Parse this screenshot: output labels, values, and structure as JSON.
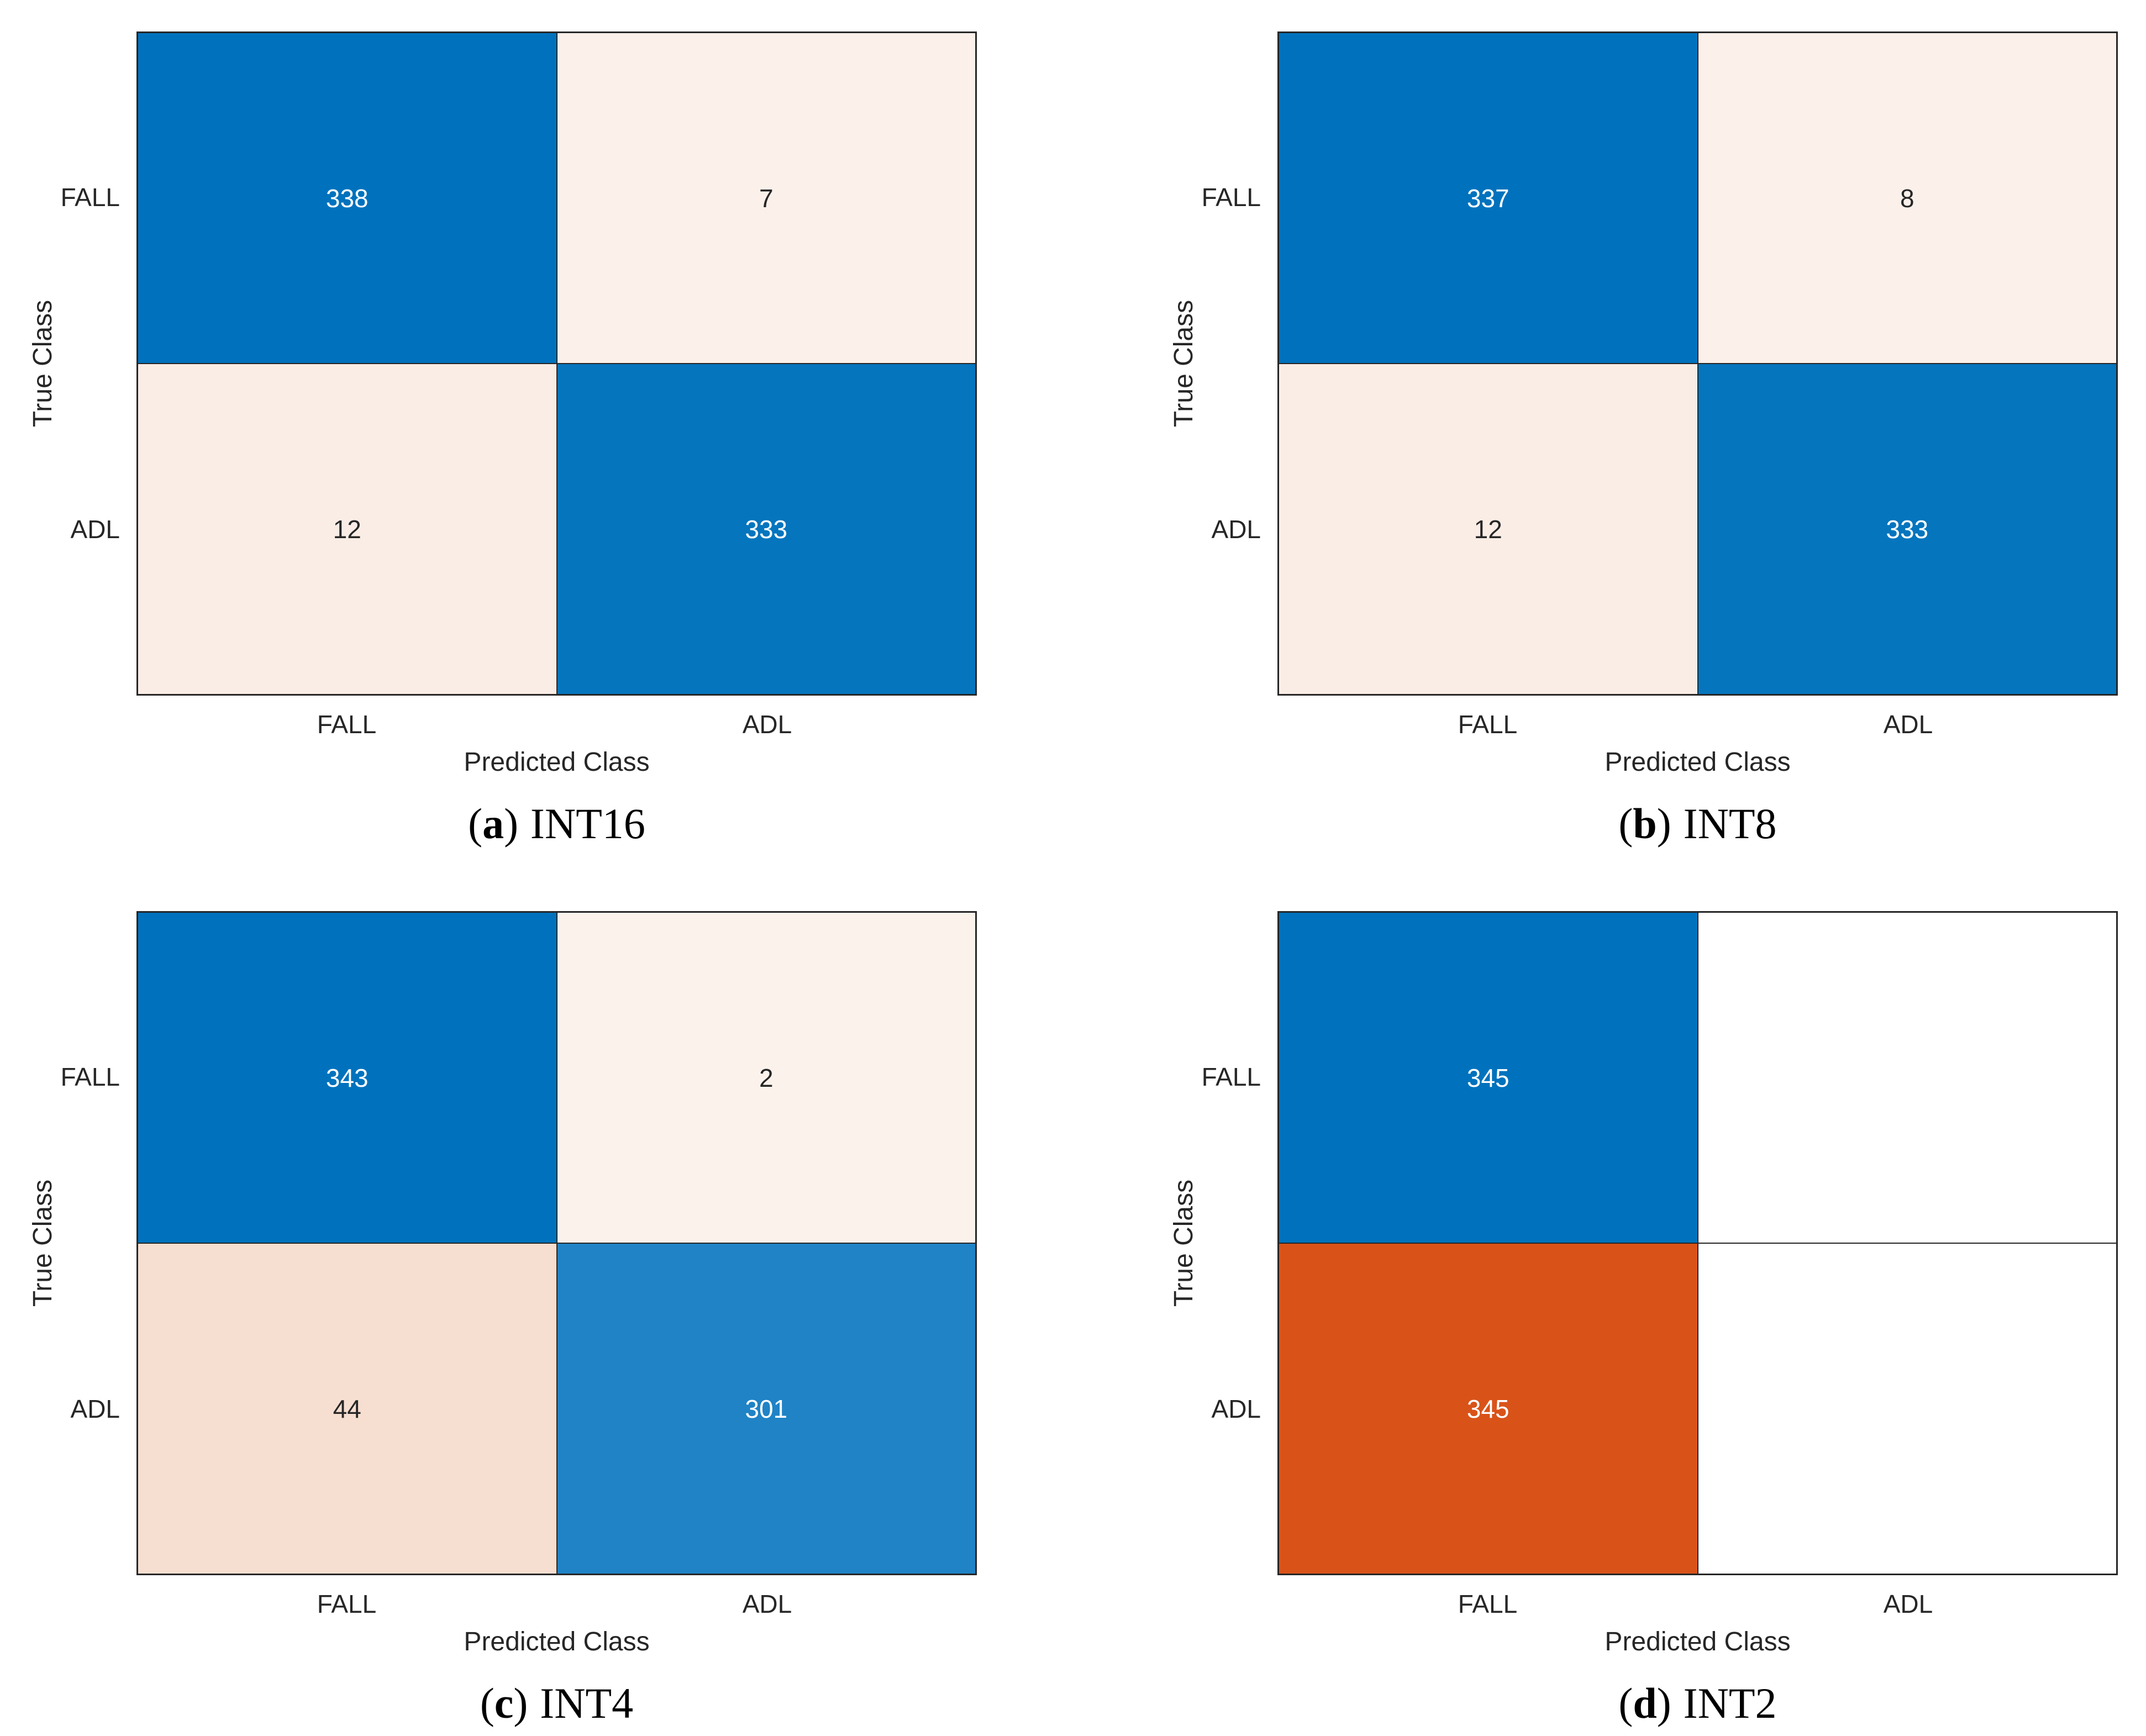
{
  "figure": {
    "ylabel": "True Class",
    "xlabel": "Predicted Class",
    "classes": [
      "FALL",
      "ADL"
    ]
  },
  "colors": {
    "diagonal_blue": "#0072BD",
    "off_diagonal_orange": "#D95319",
    "grid_line": "#262626",
    "text_dark": "#262626",
    "text_light": "#FFFFFF",
    "background": "#FFFFFF"
  },
  "panels": [
    {
      "id": "a",
      "caption": {
        "open": "(",
        "letter": "a",
        "close": ")",
        "label": "INT16"
      },
      "ylabel": "True Class",
      "xlabel": "Predicted Class",
      "row_ticks": [
        "FALL",
        "ADL"
      ],
      "col_ticks": [
        "FALL",
        "ADL"
      ],
      "cells": [
        {
          "value": "338",
          "bg": "#0072BD",
          "fg": "#FFFFFF"
        },
        {
          "value": "7",
          "bg": "#FBF0EA",
          "fg": "#262626"
        },
        {
          "value": "12",
          "bg": "#FAEDE6",
          "fg": "#262626"
        },
        {
          "value": "333",
          "bg": "#0575BE",
          "fg": "#FFFFFF"
        }
      ]
    },
    {
      "id": "b",
      "caption": {
        "open": "(",
        "letter": "b",
        "close": ")",
        "label": "INT8"
      },
      "ylabel": "True Class",
      "xlabel": "Predicted Class",
      "row_ticks": [
        "FALL",
        "ADL"
      ],
      "col_ticks": [
        "FALL",
        "ADL"
      ],
      "cells": [
        {
          "value": "337",
          "bg": "#0072BD",
          "fg": "#FFFFFF"
        },
        {
          "value": "8",
          "bg": "#FBF0EA",
          "fg": "#262626"
        },
        {
          "value": "12",
          "bg": "#FAEDE6",
          "fg": "#262626"
        },
        {
          "value": "333",
          "bg": "#0575BE",
          "fg": "#FFFFFF"
        }
      ]
    },
    {
      "id": "c",
      "caption": {
        "open": "(",
        "letter": "c",
        "close": ")",
        "label": "INT4"
      },
      "ylabel": "True Class",
      "xlabel": "Predicted Class",
      "row_ticks": [
        "FALL",
        "ADL"
      ],
      "col_ticks": [
        "FALL",
        "ADL"
      ],
      "cells": [
        {
          "value": "343",
          "bg": "#0072BD",
          "fg": "#FFFFFF"
        },
        {
          "value": "2",
          "bg": "#FCF2EC",
          "fg": "#262626"
        },
        {
          "value": "44",
          "bg": "#F6DED0",
          "fg": "#262626"
        },
        {
          "value": "301",
          "bg": "#1F83C6",
          "fg": "#FFFFFF"
        }
      ]
    },
    {
      "id": "d",
      "caption": {
        "open": "(",
        "letter": "d",
        "close": ")",
        "label": "INT2"
      },
      "ylabel": "True Class",
      "xlabel": "Predicted Class",
      "row_ticks": [
        "FALL",
        "ADL"
      ],
      "col_ticks": [
        "FALL",
        "ADL"
      ],
      "cells": [
        {
          "value": "345",
          "bg": "#0072BD",
          "fg": "#FFFFFF"
        },
        {
          "value": "",
          "bg": "#FFFFFF",
          "fg": "#262626"
        },
        {
          "value": "345",
          "bg": "#D95319",
          "fg": "#FFFFFF"
        },
        {
          "value": "",
          "bg": "#FFFFFF",
          "fg": "#262626"
        }
      ]
    }
  ],
  "chart_data": [
    {
      "type": "heatmap",
      "title": "(a) INT16",
      "xlabel": "Predicted Class",
      "ylabel": "True Class",
      "x_categories": [
        "FALL",
        "ADL"
      ],
      "y_categories": [
        "FALL",
        "ADL"
      ],
      "values": [
        [
          338,
          7
        ],
        [
          12,
          333
        ]
      ],
      "diagonal_color": "#0072BD",
      "off_diagonal_color": "#D95319"
    },
    {
      "type": "heatmap",
      "title": "(b) INT8",
      "xlabel": "Predicted Class",
      "ylabel": "True Class",
      "x_categories": [
        "FALL",
        "ADL"
      ],
      "y_categories": [
        "FALL",
        "ADL"
      ],
      "values": [
        [
          337,
          8
        ],
        [
          12,
          333
        ]
      ],
      "diagonal_color": "#0072BD",
      "off_diagonal_color": "#D95319"
    },
    {
      "type": "heatmap",
      "title": "(c) INT4",
      "xlabel": "Predicted Class",
      "ylabel": "True Class",
      "x_categories": [
        "FALL",
        "ADL"
      ],
      "y_categories": [
        "FALL",
        "ADL"
      ],
      "values": [
        [
          343,
          2
        ],
        [
          44,
          301
        ]
      ],
      "diagonal_color": "#0072BD",
      "off_diagonal_color": "#D95319"
    },
    {
      "type": "heatmap",
      "title": "(d) INT2",
      "xlabel": "Predicted Class",
      "ylabel": "True Class",
      "x_categories": [
        "FALL",
        "ADL"
      ],
      "y_categories": [
        "FALL",
        "ADL"
      ],
      "values": [
        [
          345,
          null
        ],
        [
          345,
          null
        ]
      ],
      "diagonal_color": "#0072BD",
      "off_diagonal_color": "#D95319"
    }
  ]
}
